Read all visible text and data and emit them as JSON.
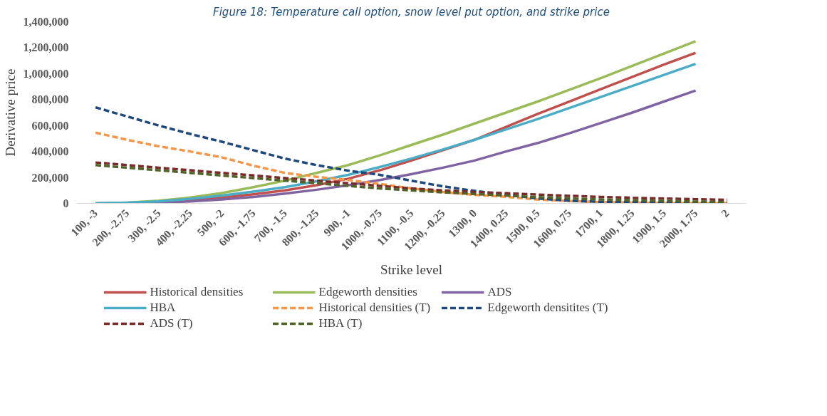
{
  "chart_data": {
    "type": "line",
    "title": "Figure 18: Temperature call option, snow level put option, and strike price",
    "xlabel": "Strike level",
    "ylabel": "Derivative price",
    "categories": [
      "100, -3",
      "200, -2.75",
      "300, -2.5",
      "400, -2.25",
      "500, -2",
      "600, -1.75",
      "700, -1.5",
      "800, -1.25",
      "900, -1",
      "1000, -0.75",
      "1100, -0.5",
      "1200, -0.25",
      "1300, 0",
      "1400, 0.25",
      "1500, 0.5",
      "1600, 0.75",
      "1700, 1",
      "1800, 1.25",
      "1900, 1.5",
      "2000, 1.75",
      "2"
    ],
    "ylim": [
      0,
      1400000
    ],
    "yticks": [
      {
        "value": 0,
        "label": "0"
      },
      {
        "value": 200000,
        "label": "200,000"
      },
      {
        "value": 400000,
        "label": "400,000"
      },
      {
        "value": 600000,
        "label": "600,000"
      },
      {
        "value": 800000,
        "label": "800,000"
      },
      {
        "value": 1000000,
        "label": "1,000,000"
      },
      {
        "value": 1200000,
        "label": "1,200,000"
      },
      {
        "value": 1400000,
        "label": "1,400,000"
      }
    ],
    "grid": false,
    "legend": "bottom",
    "marker": "none",
    "series": [
      {
        "name": "Historical densities",
        "color": "#c0504d",
        "line_style": "solid",
        "values": [
          null,
          null,
          10000,
          25000,
          45000,
          70000,
          100000,
          140000,
          190000,
          255000,
          330000,
          410000,
          490000,
          590000,
          690000,
          785000,
          880000,
          975000,
          1070000,
          1160000,
          null
        ]
      },
      {
        "name": "Edgeworth densities",
        "color": "#9bbb59",
        "line_style": "solid",
        "values": [
          0,
          5000,
          20000,
          45000,
          80000,
          125000,
          175000,
          235000,
          295000,
          370000,
          450000,
          530000,
          615000,
          700000,
          785000,
          875000,
          965000,
          1060000,
          1155000,
          1250000,
          null
        ]
      },
      {
        "name": "ADS",
        "color": "#8064a2",
        "line_style": "solid",
        "values": [
          0,
          2000,
          7000,
          15000,
          30000,
          50000,
          75000,
          105000,
          140000,
          180000,
          225000,
          275000,
          330000,
          400000,
          465000,
          540000,
          620000,
          700000,
          785000,
          870000,
          null
        ]
      },
      {
        "name": "HBA",
        "color": "#4bacc6",
        "line_style": "solid",
        "values": [
          0,
          5000,
          15000,
          35000,
          60000,
          90000,
          125000,
          170000,
          220000,
          280000,
          345000,
          415000,
          490000,
          570000,
          650000,
          735000,
          820000,
          905000,
          990000,
          1075000,
          null
        ]
      },
      {
        "name": "Historical densities (T)",
        "color": "#f79646",
        "line_style": "dashed",
        "values": [
          545000,
          490000,
          440000,
          400000,
          355000,
          290000,
          235000,
          205000,
          180000,
          150000,
          115000,
          88000,
          66000,
          50000,
          30000,
          18000,
          10000,
          6000,
          3000,
          2000,
          1000
        ]
      },
      {
        "name": "Edgeworth densitites (T)",
        "color": "#1f497d",
        "line_style": "dashed",
        "values": [
          740000,
          670000,
          600000,
          535000,
          475000,
          410000,
          345000,
          295000,
          252000,
          220000,
          175000,
          131000,
          96000,
          66000,
          38000,
          20000,
          12000,
          8000,
          5000,
          3000,
          2000
        ]
      },
      {
        "name": "ADS (T)",
        "color": "#772c2a",
        "line_style": "dashed",
        "values": [
          315000,
          295000,
          275000,
          255000,
          235000,
          215000,
          195000,
          175000,
          155000,
          135000,
          115000,
          100000,
          88000,
          78000,
          68000,
          58000,
          50000,
          43000,
          37000,
          32000,
          27000
        ]
      },
      {
        "name": "HBA (T)",
        "color": "#4f6228",
        "line_style": "dashed",
        "values": [
          295000,
          275000,
          255000,
          235000,
          215000,
          195000,
          175000,
          155000,
          135000,
          115000,
          100000,
          85000,
          72000,
          60000,
          48000,
          38000,
          30000,
          24000,
          18000,
          14000,
          10000
        ]
      }
    ]
  }
}
